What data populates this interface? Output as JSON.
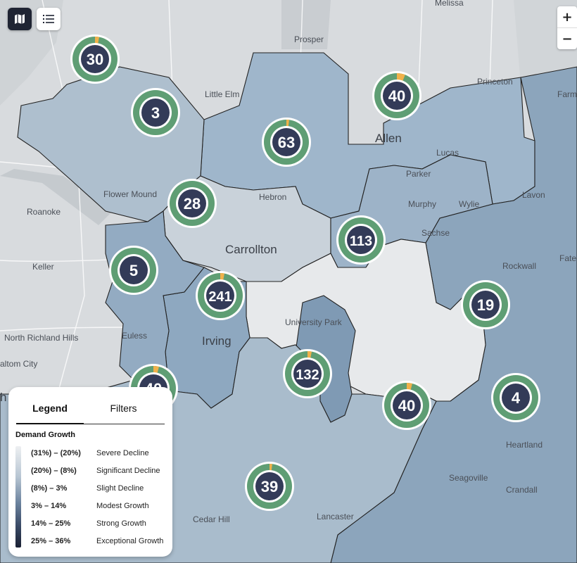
{
  "map": {
    "places": [
      {
        "id": "melissa",
        "text": "Melissa"
      },
      {
        "id": "prosper",
        "text": "Prosper"
      },
      {
        "id": "princeton",
        "text": "Princeton"
      },
      {
        "id": "farm",
        "text": "Farm"
      },
      {
        "id": "little-elm",
        "text": "Little Elm"
      },
      {
        "id": "allen",
        "text": "Allen"
      },
      {
        "id": "lucas",
        "text": "Lucas"
      },
      {
        "id": "parker",
        "text": "Parker"
      },
      {
        "id": "flower-mound",
        "text": "Flower Mound"
      },
      {
        "id": "hebron",
        "text": "Hebron"
      },
      {
        "id": "lavon",
        "text": "Lavon"
      },
      {
        "id": "roanoke",
        "text": "Roanoke"
      },
      {
        "id": "murphy",
        "text": "Murphy"
      },
      {
        "id": "wylie",
        "text": "Wylie"
      },
      {
        "id": "sachse",
        "text": "Sachse"
      },
      {
        "id": "carrollton",
        "text": "Carrollton"
      },
      {
        "id": "keller",
        "text": "Keller"
      },
      {
        "id": "rockwall",
        "text": "Rockwall"
      },
      {
        "id": "fate",
        "text": "Fate"
      },
      {
        "id": "university-park",
        "text": "University Park"
      },
      {
        "id": "north-richland-hills",
        "text": "North Richland Hills"
      },
      {
        "id": "euless",
        "text": "Euless"
      },
      {
        "id": "irving",
        "text": "Irving"
      },
      {
        "id": "haltom-city",
        "text": "altom City"
      },
      {
        "id": "heartland",
        "text": "Heartland"
      },
      {
        "id": "seagoville",
        "text": "Seagoville"
      },
      {
        "id": "crandall",
        "text": "Crandall"
      },
      {
        "id": "cedar-hill",
        "text": "Cedar Hill"
      },
      {
        "id": "lancaster",
        "text": "Lancaster"
      },
      {
        "id": "edge-h",
        "text": "h"
      }
    ],
    "clusters": [
      {
        "count": "30",
        "fraction": 0.03
      },
      {
        "count": "3",
        "fraction": 0
      },
      {
        "count": "40",
        "fraction": 0.06
      },
      {
        "count": "63",
        "fraction": 0.02
      },
      {
        "count": "28",
        "fraction": 0
      },
      {
        "count": "113",
        "fraction": 0
      },
      {
        "count": "5",
        "fraction": 0
      },
      {
        "count": "241",
        "fraction": 0.03
      },
      {
        "count": "19",
        "fraction": 0
      },
      {
        "count": "132",
        "fraction": 0.03
      },
      {
        "count": "40",
        "fraction": 0.04
      },
      {
        "count": "4",
        "fraction": 0
      },
      {
        "count": "39",
        "fraction": 0.02
      },
      {
        "count": "40",
        "fraction": 0.04
      }
    ],
    "colors": {
      "ring": "#5f9e74",
      "ring_accent": "#f0b14a",
      "count_fill": "#333b58",
      "water": "#c7ccd2"
    }
  },
  "controls": {
    "map_view_icon": "map-icon",
    "list_view_icon": "list-icon",
    "zoom_in": "+",
    "zoom_out": "−"
  },
  "legend": {
    "tabs": [
      "Legend",
      "Filters"
    ],
    "heading": "Demand Growth",
    "rows": [
      {
        "range": "(31%) – (20%)",
        "label": "Severe Decline"
      },
      {
        "range": "(20%) – (8%)",
        "label": "Significant Decline"
      },
      {
        "range": "(8%) – 3%",
        "label": "Slight Decline"
      },
      {
        "range": "3% – 14%",
        "label": "Modest Growth"
      },
      {
        "range": "14% – 25%",
        "label": "Strong Growth"
      },
      {
        "range": "25% – 36%",
        "label": "Exceptional Growth"
      }
    ]
  }
}
